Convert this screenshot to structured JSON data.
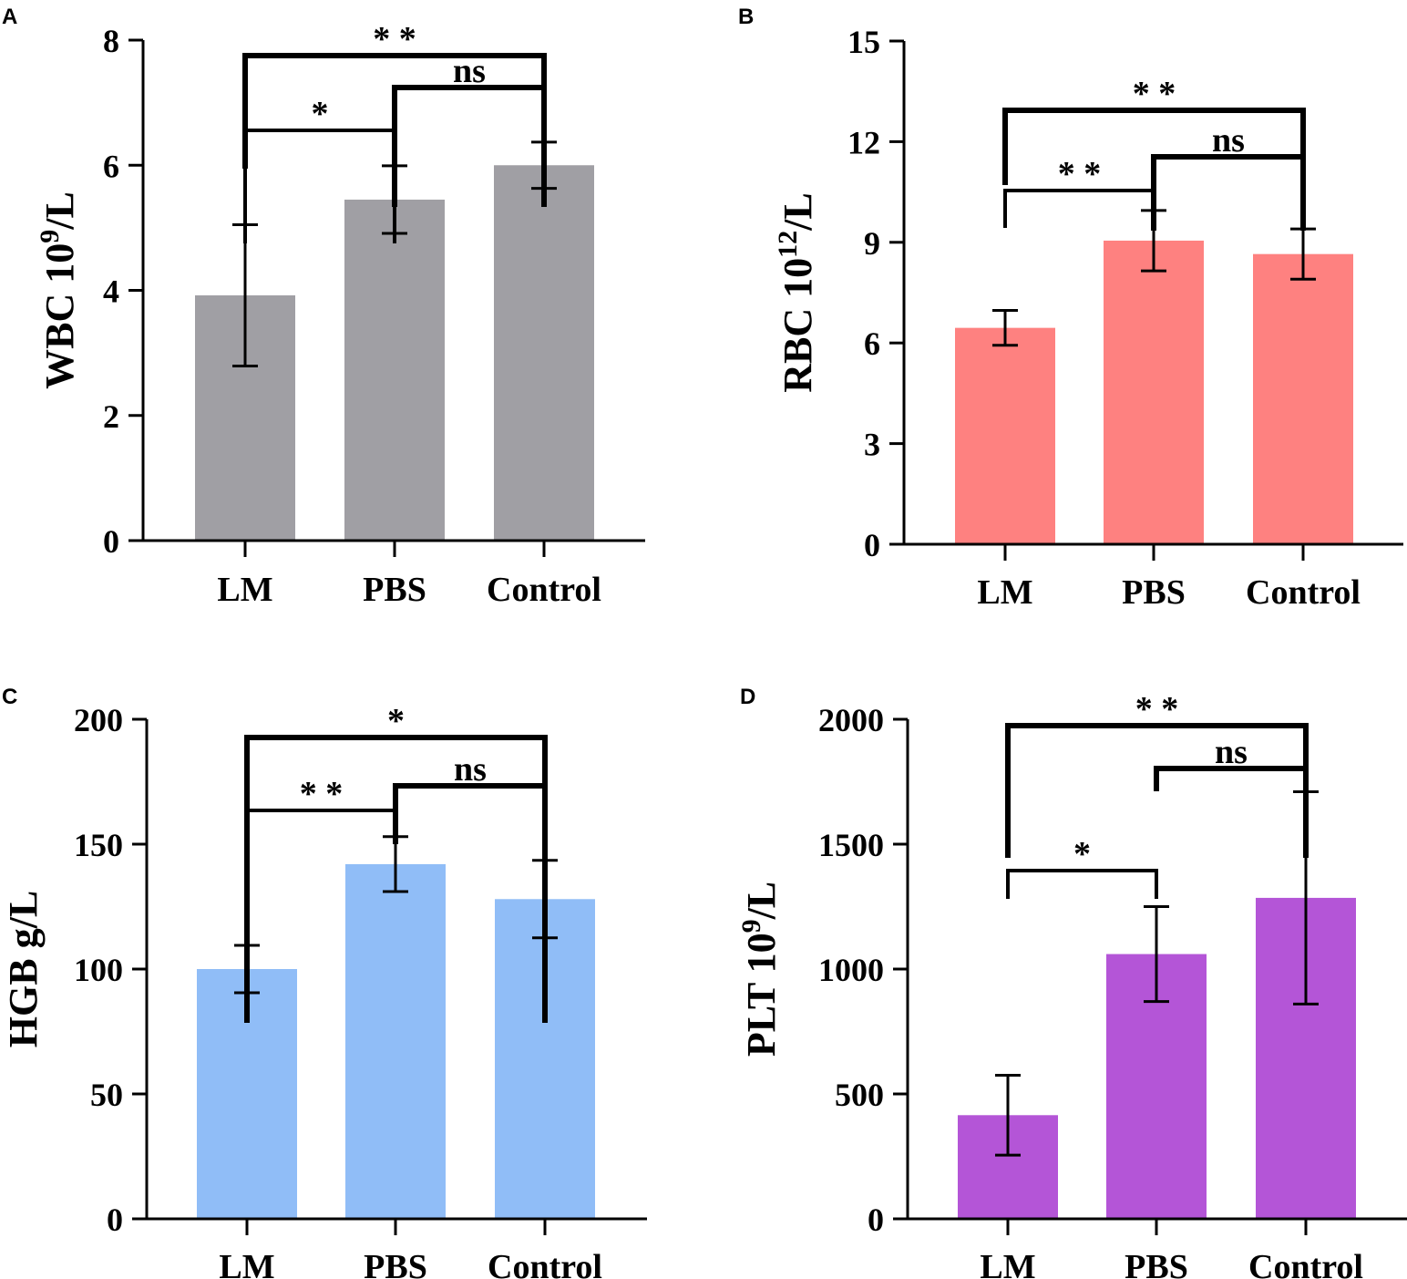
{
  "chart_data": [
    {
      "type": "bar",
      "panel": "A",
      "ylabel": "WBC 10",
      "ylabel_sup": "9",
      "ylabel_suffix": "/L",
      "categories": [
        "LM",
        "PBS",
        "Control"
      ],
      "values": [
        3.92,
        5.45,
        6.0
      ],
      "errors": [
        1.13,
        0.54,
        0.37
      ],
      "ylim": [
        0,
        8
      ],
      "yticks": [
        0,
        2,
        4,
        6,
        8
      ],
      "color": "#a09fa4",
      "comparisons": [
        {
          "from": 0,
          "to": 2,
          "label": "* *"
        },
        {
          "from": 1,
          "to": 2,
          "label": "ns"
        },
        {
          "from": 0,
          "to": 1,
          "label": "*"
        }
      ]
    },
    {
      "type": "bar",
      "panel": "B",
      "ylabel": "RBC 10",
      "ylabel_sup": "12",
      "ylabel_suffix": "/L",
      "categories": [
        "LM",
        "PBS",
        "Control"
      ],
      "values": [
        6.45,
        9.05,
        8.65
      ],
      "errors": [
        0.52,
        0.9,
        0.75
      ],
      "ylim": [
        0,
        15
      ],
      "yticks": [
        0,
        3,
        6,
        9,
        12,
        15
      ],
      "color": "#fe8180",
      "comparisons": [
        {
          "from": 0,
          "to": 2,
          "label": "* *"
        },
        {
          "from": 1,
          "to": 2,
          "label": "ns"
        },
        {
          "from": 0,
          "to": 1,
          "label": "* *"
        }
      ]
    },
    {
      "type": "bar",
      "panel": "C",
      "ylabel": "HGB g/L",
      "ylabel_sup": "",
      "ylabel_suffix": "",
      "categories": [
        "LM",
        "PBS",
        "Control"
      ],
      "values": [
        100,
        142,
        128
      ],
      "errors": [
        9.5,
        11,
        15.5
      ],
      "ylim": [
        0,
        200
      ],
      "yticks": [
        0,
        50,
        100,
        150,
        200
      ],
      "color": "#90bdf7",
      "comparisons": [
        {
          "from": 0,
          "to": 2,
          "label": "*"
        },
        {
          "from": 1,
          "to": 2,
          "label": "ns"
        },
        {
          "from": 0,
          "to": 1,
          "label": "* *"
        }
      ]
    },
    {
      "type": "bar",
      "panel": "D",
      "ylabel": "PLT 10",
      "ylabel_sup": "9",
      "ylabel_suffix": "/L",
      "categories": [
        "LM",
        "PBS",
        "Control"
      ],
      "values": [
        415,
        1060,
        1285
      ],
      "errors": [
        160,
        190,
        425
      ],
      "ylim": [
        0,
        2000
      ],
      "yticks": [
        0,
        500,
        1000,
        1500,
        2000
      ],
      "color": "#b455d7",
      "comparisons": [
        {
          "from": 0,
          "to": 2,
          "label": "* *"
        },
        {
          "from": 1,
          "to": 2,
          "label": "ns"
        },
        {
          "from": 0,
          "to": 1,
          "label": "*"
        }
      ]
    }
  ]
}
